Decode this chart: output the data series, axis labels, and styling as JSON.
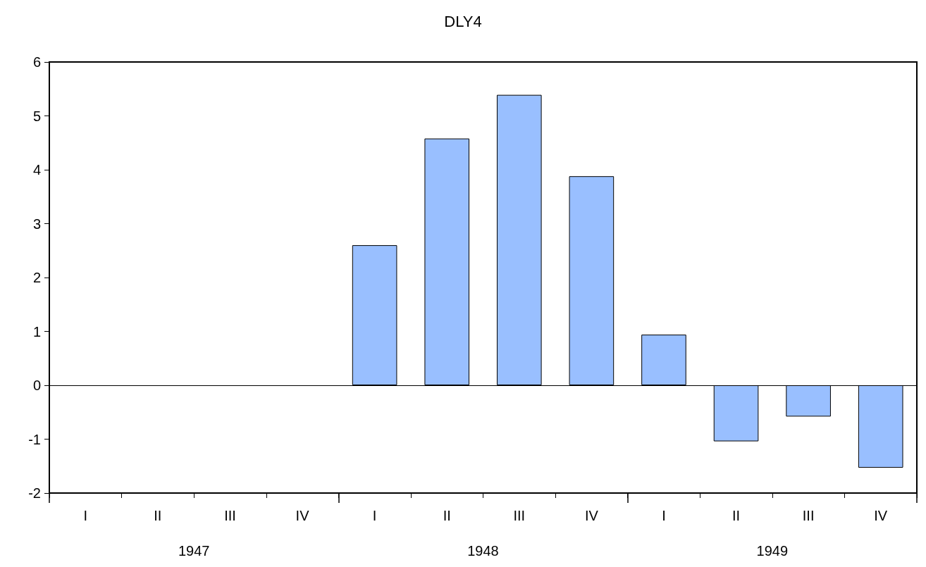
{
  "chart_data": {
    "type": "bar",
    "title": "DLY4",
    "categories": [
      "I",
      "II",
      "III",
      "IV",
      "I",
      "II",
      "III",
      "IV",
      "I",
      "II",
      "III",
      "IV"
    ],
    "values": [
      null,
      null,
      null,
      null,
      2.6,
      4.58,
      5.39,
      3.88,
      0.94,
      -1.04,
      -0.58,
      -1.53
    ],
    "color": "#99bfff",
    "ylim": [
      -2,
      6
    ],
    "yticks": [
      -2,
      -1,
      0,
      1,
      2,
      3,
      4,
      5,
      6
    ],
    "ref_lines": [
      {
        "axis": "y",
        "value": 0,
        "color": "#000000"
      }
    ],
    "annotations": [
      "1947",
      "1948",
      "1949"
    ],
    "grid": false
  }
}
